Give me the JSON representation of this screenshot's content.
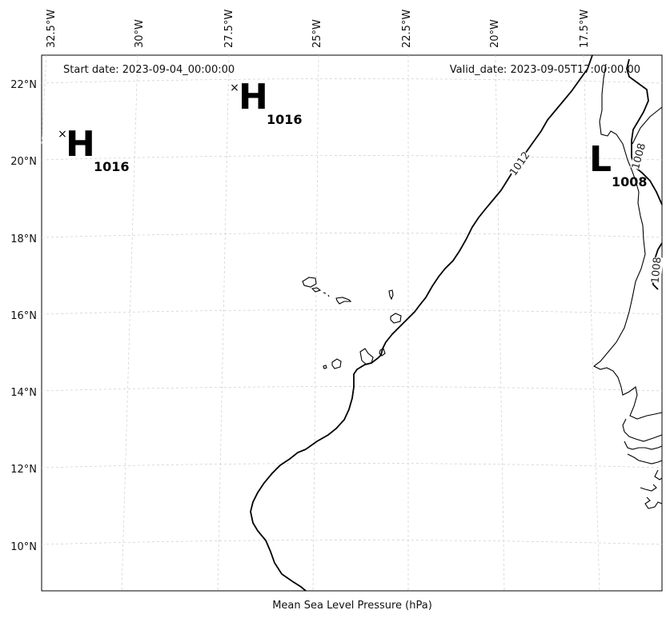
{
  "header": {
    "start_date": "Start date: 2023-09-04_00:00:00",
    "valid_date": "Valid_date: 2023-09-05T17:00:00.00"
  },
  "footer": {
    "caption": "Mean Sea Level Pressure (hPa)"
  },
  "map": {
    "lon_ticks": [
      {
        "label": "32.5°W"
      },
      {
        "label": "30°W"
      },
      {
        "label": "27.5°W"
      },
      {
        "label": "25°W"
      },
      {
        "label": "22.5°W"
      },
      {
        "label": "20°W"
      },
      {
        "label": "17.5°W"
      }
    ],
    "lat_ticks": [
      {
        "label": "22°N"
      },
      {
        "label": "20°N"
      },
      {
        "label": "18°N"
      },
      {
        "label": "16°N"
      },
      {
        "label": "14°N"
      },
      {
        "label": "12°N"
      },
      {
        "label": "10°N"
      }
    ],
    "isobars": [
      {
        "label": "1012"
      },
      {
        "label": "1008"
      },
      {
        "label": "1008"
      }
    ],
    "pressure_centers": [
      {
        "type": "H",
        "value": "1016",
        "mark": "×"
      },
      {
        "type": "H",
        "value": "1016",
        "mark": "×"
      },
      {
        "type": "L",
        "value": "1008",
        "mark": "×"
      }
    ]
  }
}
